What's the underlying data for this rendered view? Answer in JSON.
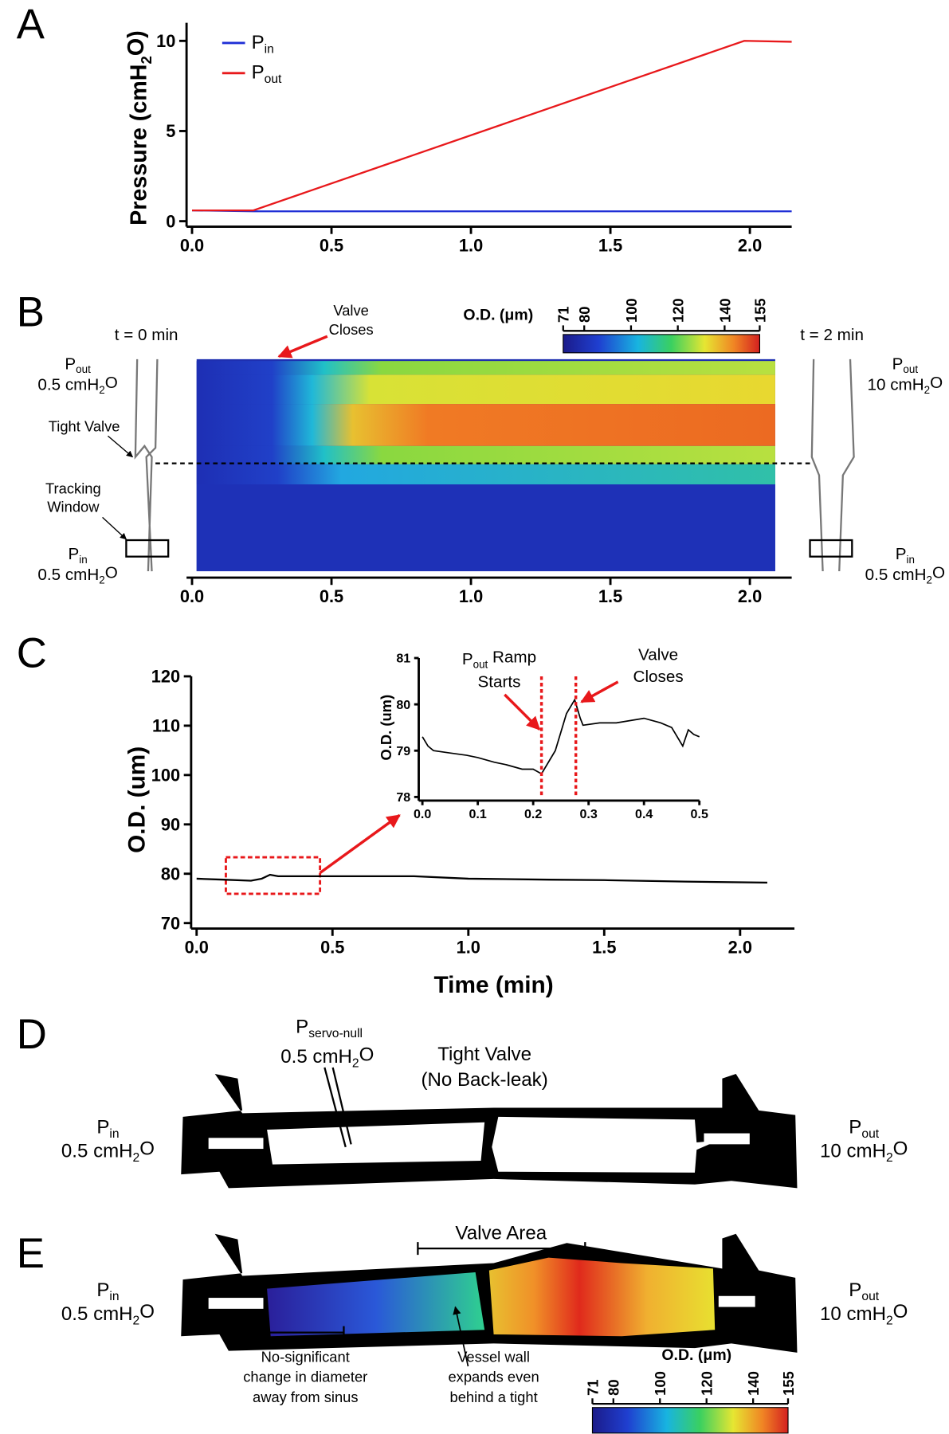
{
  "panel_letters": [
    "A",
    "B",
    "C",
    "D",
    "E"
  ],
  "chart_data": [
    {
      "type": "line",
      "y_label": [
        "Pressure (cmH",
        "2",
        "O)"
      ],
      "x": [
        0,
        0.22,
        1.98,
        2.15
      ],
      "series": [
        {
          "name": "P",
          "name_subscript": "in",
          "color": "#1f2fd6",
          "values": [
            0.6,
            0.55,
            0.55,
            0.55
          ]
        },
        {
          "name": "P",
          "name_subscript": "out",
          "color": "#e8181b",
          "values": [
            0.6,
            0.6,
            10,
            9.95
          ]
        }
      ],
      "xlim": [
        0,
        2.15
      ],
      "xticks": [
        {
          "value": 0,
          "label": "0.0"
        },
        0.5,
        {
          "value": 1,
          "label": "1.0"
        },
        1.5,
        {
          "value": 2,
          "label": "2.0"
        }
      ],
      "ylim": [
        0,
        11
      ],
      "yticks": [
        0,
        5,
        10
      ]
    },
    {
      "type": "heatmap",
      "annotation": [
        "Valve",
        "Closes"
      ],
      "xlim": [
        0,
        2.15
      ],
      "xticks": [
        {
          "value": 0,
          "label": "0.0"
        },
        0.5,
        {
          "value": 1,
          "label": "1.0"
        },
        1.5,
        {
          "value": 2,
          "label": "2.0"
        }
      ],
      "colorbar": {
        "title": "O.D. (μm)",
        "clim": [
          71,
          155
        ],
        "ticks": [
          71,
          80,
          100,
          120,
          140,
          155
        ]
      }
    },
    {
      "type": "line",
      "x_label": "Time (min)",
      "y_label": "O.D. (um)",
      "color": "#000000",
      "x": [
        0,
        0.1,
        0.2,
        0.24,
        0.27,
        0.3,
        0.5,
        0.8,
        1.0,
        1.3,
        1.5,
        1.8,
        2.1
      ],
      "values": [
        79,
        78.8,
        78.6,
        79,
        79.8,
        79.5,
        79.5,
        79.5,
        79,
        78.8,
        78.7,
        78.4,
        78.2
      ],
      "xlim": [
        0,
        2.2
      ],
      "xticks": [
        {
          "value": 0,
          "label": "0.0"
        },
        0.5,
        {
          "value": 1,
          "label": "1.0"
        },
        1.5,
        {
          "value": 2,
          "label": "2.0"
        }
      ],
      "ylim": [
        70,
        120
      ],
      "yticks": [
        70,
        80,
        90,
        100,
        110,
        120
      ]
    },
    {
      "type": "line",
      "y_label": "O.D. (um)",
      "color": "#000000",
      "x": [
        0,
        0.01,
        0.02,
        0.05,
        0.08,
        0.1,
        0.13,
        0.15,
        0.18,
        0.2,
        0.215,
        0.24,
        0.26,
        0.275,
        0.285,
        0.29,
        0.32,
        0.35,
        0.4,
        0.43,
        0.45,
        0.47,
        0.48,
        0.49,
        0.5
      ],
      "values": [
        79.3,
        79.1,
        79,
        78.95,
        78.9,
        78.85,
        78.75,
        78.7,
        78.6,
        78.6,
        78.5,
        79,
        79.8,
        80.1,
        79.7,
        79.55,
        79.6,
        79.6,
        79.7,
        79.6,
        79.5,
        79.1,
        79.45,
        79.35,
        79.3
      ],
      "xlim": [
        0,
        0.5
      ],
      "xticks": [
        {
          "value": 0,
          "label": "0.0"
        },
        0.1,
        0.2,
        0.3,
        0.4,
        0.5
      ],
      "ylim": [
        78,
        81
      ],
      "yticks": [
        78,
        79,
        80,
        81
      ],
      "vlines": [
        0.215,
        0.277
      ],
      "ramp_label": {
        "symbol": "P",
        "sub": "out",
        "rest": " Ramp",
        "line2": "Starts"
      },
      "valve_label": [
        "Valve",
        "Closes"
      ]
    }
  ],
  "panel_b": {
    "t0": "t = 0 min",
    "t2": "t = 2 min",
    "left_out": {
      "symbol": "P",
      "sub": "out",
      "value": "0.5 cmH",
      "value_sub": "2",
      "value_end": "O"
    },
    "left_in": {
      "symbol": "P",
      "sub": "in",
      "value": "0.5 cmH",
      "value_sub": "2",
      "value_end": "O"
    },
    "right_out": {
      "symbol": "P",
      "sub": "out",
      "value": "10 cmH",
      "value_sub": "2",
      "value_end": "O"
    },
    "right_in": {
      "symbol": "P",
      "sub": "in",
      "value": "0.5 cmH",
      "value_sub": "2",
      "value_end": "O"
    },
    "tight_valve": "Tight Valve",
    "tracking_window": [
      "Tracking",
      "Window"
    ]
  },
  "panel_d": {
    "servo": {
      "symbol": "P",
      "sub": "servo-null",
      "value": "0.5 cmH",
      "value_sub": "2",
      "value_end": "O"
    },
    "valve": [
      "Tight Valve",
      "(No Back-leak)"
    ],
    "left": {
      "symbol": "P",
      "sub": "in",
      "value": "0.5 cmH",
      "value_sub": "2",
      "value_end": "O"
    },
    "right": {
      "symbol": "P",
      "sub": "out",
      "value": "10 cmH",
      "value_sub": "2",
      "value_end": "O"
    }
  },
  "panel_e": {
    "valve_area": "Valve Area",
    "note_left": [
      "No-significant",
      "change in diameter",
      "away from sinus"
    ],
    "note_mid": [
      "Vessel wall",
      "expands even",
      "behind a tight"
    ],
    "left": {
      "symbol": "P",
      "sub": "in",
      "value": "0.5 cmH",
      "value_sub": "2",
      "value_end": "O"
    },
    "right": {
      "symbol": "P",
      "sub": "out",
      "value": "10 cmH",
      "value_sub": "2",
      "value_end": "O"
    },
    "colorbar": {
      "title": "O.D. (μm)",
      "clim": [
        71,
        155
      ],
      "ticks": [
        71,
        80,
        100,
        120,
        140,
        155
      ]
    }
  }
}
